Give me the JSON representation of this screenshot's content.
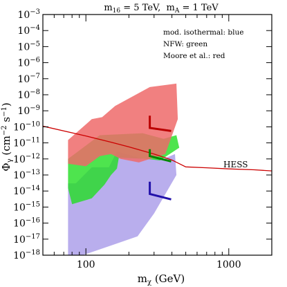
{
  "chart_data": {
    "type": "area",
    "title": "m16 = 5 TeV, mA = 1 TeV",
    "title_parts": {
      "m16_symbol": "m",
      "m16_sub": "16",
      "m16_value": " = 5 TeV,  ",
      "mA_symbol": "m",
      "mA_sub": "A",
      "mA_value": " = 1 TeV"
    },
    "xlabel": "mχ (GeV)",
    "xlabel_parts": {
      "symbol": "m",
      "sub": "χ",
      "unit": " (GeV)"
    },
    "ylabel": "Φγ (cm⁻² s⁻¹)",
    "ylabel_parts": {
      "symbol": "Φ",
      "sub": "γ",
      "unit": " (cm",
      "exp1": "−2",
      "mid": " s",
      "exp2": "−1",
      "close": ")"
    },
    "x_scale": "log",
    "y_scale": "log",
    "xlim": [
      50,
      2000
    ],
    "ylim": [
      1e-18,
      0.001
    ],
    "x_tick_labels": [
      {
        "value": 100,
        "label": "100"
      },
      {
        "value": 1000,
        "label": "1000"
      }
    ],
    "y_tick_labels": [
      {
        "value": -3,
        "base": "10",
        "exp": "−3"
      },
      {
        "value": -4,
        "base": "10",
        "exp": "−4"
      },
      {
        "value": -5,
        "base": "10",
        "exp": "−5"
      },
      {
        "value": -6,
        "base": "10",
        "exp": "−6"
      },
      {
        "value": -7,
        "base": "10",
        "exp": "−7"
      },
      {
        "value": -8,
        "base": "10",
        "exp": "−8"
      },
      {
        "value": -9,
        "base": "10",
        "exp": "−9"
      },
      {
        "value": -10,
        "base": "10",
        "exp": "−10"
      },
      {
        "value": -11,
        "base": "10",
        "exp": "−11"
      },
      {
        "value": -12,
        "base": "10",
        "exp": "−12"
      },
      {
        "value": -13,
        "base": "10",
        "exp": "−13"
      },
      {
        "value": -14,
        "base": "10",
        "exp": "−14"
      },
      {
        "value": -15,
        "base": "10",
        "exp": "−15"
      },
      {
        "value": -16,
        "base": "10",
        "exp": "−16"
      },
      {
        "value": -17,
        "base": "10",
        "exp": "−17"
      },
      {
        "value": -18,
        "base": "10",
        "exp": "−18"
      }
    ],
    "legend": [
      "mod. isothermal: blue",
      "NFW: green",
      "Moore et al.: red"
    ],
    "legend_position": "top-right",
    "grid": false,
    "regions": [
      {
        "profile": "mod. isothermal",
        "color": "#a89ae8",
        "boundary": [
          [
            75,
            3e-14
          ],
          [
            85,
            3e-14
          ],
          [
            110,
            3e-13
          ],
          [
            145,
            3e-13
          ],
          [
            165,
            3e-12
          ],
          [
            250,
            1e-12
          ],
          [
            350,
            1e-12
          ],
          [
            420,
            2e-12
          ],
          [
            430,
            1e-13
          ],
          [
            300,
            4e-16
          ],
          [
            230,
            1.5e-17
          ],
          [
            150,
            4e-18
          ],
          [
            95,
            1e-18
          ],
          [
            75,
            1e-18
          ],
          [
            75,
            8e-15
          ]
        ]
      },
      {
        "profile": "NFW",
        "color": "#22dd22",
        "boundary": [
          [
            75,
            1e-12
          ],
          [
            125,
            3e-11
          ],
          [
            250,
            4e-11
          ],
          [
            350,
            1.8e-11
          ],
          [
            430,
            3e-11
          ],
          [
            450,
            5e-12
          ],
          [
            330,
            8e-13
          ],
          [
            265,
            1e-12
          ],
          [
            170,
            1.2e-12
          ],
          [
            165,
            2.5e-13
          ],
          [
            150,
            1e-13
          ],
          [
            135,
            2.5e-14
          ],
          [
            110,
            3.5e-15
          ],
          [
            80,
            1.5e-15
          ],
          [
            75,
            1.5e-14
          ]
        ]
      },
      {
        "profile": "Moore et al.",
        "color": "#ee6a6a",
        "boundary": [
          [
            75,
            1.5e-11
          ],
          [
            110,
            3e-10
          ],
          [
            130,
            4e-10
          ],
          [
            160,
            2e-09
          ],
          [
            280,
            3e-08
          ],
          [
            430,
            5e-08
          ],
          [
            440,
            3e-10
          ],
          [
            360,
            2e-12
          ],
          [
            235,
            6e-13
          ],
          [
            175,
            1e-12
          ],
          [
            150,
            2e-12
          ],
          [
            125,
            1.5e-12
          ],
          [
            100,
            3.5e-13
          ],
          [
            75,
            5e-13
          ]
        ]
      }
    ],
    "markers": [
      {
        "profile": "Moore et al.",
        "color": "#bb0000",
        "points": [
          [
            280,
            5e-10
          ],
          [
            280,
            8.5e-11
          ],
          [
            395,
            5.5e-11
          ]
        ]
      },
      {
        "profile": "NFW",
        "color": "#008800",
        "points": [
          [
            280,
            4e-12
          ],
          [
            280,
            1.5e-12
          ],
          [
            395,
            7e-13
          ]
        ]
      },
      {
        "profile": "mod. isothermal",
        "color": "#2211aa",
        "points": [
          [
            280,
            3.8e-14
          ],
          [
            280,
            6.5e-15
          ],
          [
            395,
            3e-15
          ]
        ]
      }
    ],
    "series": [
      {
        "name": "HESS",
        "color": "#cc0000",
        "x": [
          50,
          100,
          150,
          200,
          300,
          400,
          500,
          700,
          1000,
          1500,
          2000
        ],
        "y": [
          1.1e-10,
          2.7e-11,
          1.1e-11,
          5.6e-12,
          2e-12,
          8.5e-13,
          3.2e-13,
          2.8e-13,
          2.4e-13,
          2.1e-13,
          1.8e-13
        ]
      }
    ]
  }
}
